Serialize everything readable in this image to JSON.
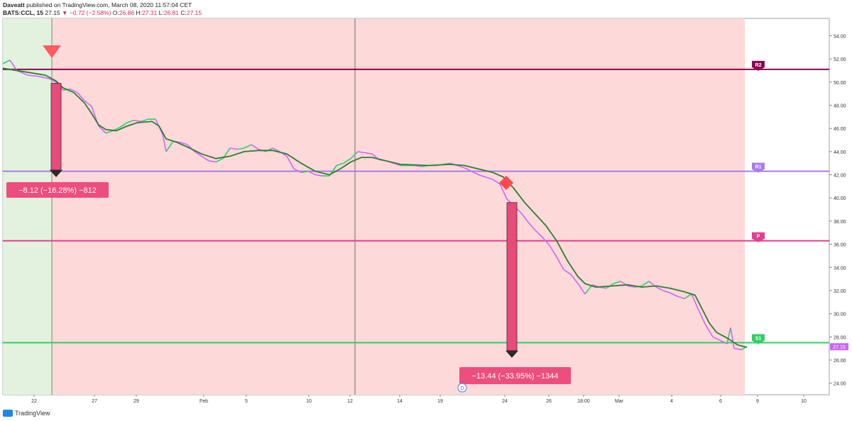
{
  "header": {
    "publisher": "Daveatt",
    "published_text": "published on TradingView.com, March 08, 2020 11:57:04 CET",
    "symbol": "BATS:CCL, 15",
    "last": "27.15",
    "change": "−0.72 (−2.58%)",
    "o_label": "O:",
    "o_val": "26.86",
    "h_label": "H:",
    "h_val": "27.31",
    "l_label": "L:",
    "l_val": "26.81",
    "c_label": "C:",
    "c_val": "27.15"
  },
  "footer": {
    "brand": "TradingView"
  },
  "colors": {
    "green_zone": "#e3f1df",
    "red_zone": "#fdd9d9",
    "price_up": "#2ecc71",
    "price_down": "#cc66ff",
    "ma": "#2e7d32",
    "r2": "#8b0a50",
    "r1": "#a97de8",
    "p": "#e43f8f",
    "s1": "#33cc66",
    "arrow": "#e84a7a",
    "box": "#ee4d7f"
  },
  "chart_data": {
    "type": "line",
    "ylim": [
      23,
      55.5
    ],
    "y_ticks": [
      "54.00",
      "52.00",
      "50.00",
      "48.00",
      "46.00",
      "44.00",
      "42.00",
      "40.00",
      "38.00",
      "36.00",
      "34.00",
      "32.00",
      "30.00",
      "28.00",
      "26.00",
      "24.00"
    ],
    "x_ticks": [
      "22",
      "27",
      "29",
      "Feb",
      "5",
      "10",
      "12",
      "14",
      "19",
      "24",
      "26",
      "18:00",
      "Mar",
      "4",
      "6",
      "9",
      "10"
    ],
    "last_price_label": "27.15",
    "levels": [
      {
        "label": "R2",
        "value": 51.1
      },
      {
        "label": "R1",
        "value": 42.3
      },
      {
        "label": "P",
        "value": 36.3
      },
      {
        "label": "S1",
        "value": 27.5
      }
    ],
    "trades": [
      {
        "label": "−8.12 (−16.28%) −812",
        "from": 49.9,
        "to": 41.8
      },
      {
        "label": "−13.44 (−33.95%) −1344",
        "from": 39.6,
        "to": 26.2
      }
    ],
    "price_series": [
      [
        0,
        51.6
      ],
      [
        10,
        51.9
      ],
      [
        20,
        51.0
      ],
      [
        35,
        50.6
      ],
      [
        50,
        50.5
      ],
      [
        65,
        50.3
      ],
      [
        75,
        50.0
      ],
      [
        85,
        49.3
      ],
      [
        95,
        49.4
      ],
      [
        105,
        49.1
      ],
      [
        115,
        48.4
      ],
      [
        125,
        47.9
      ],
      [
        135,
        46.2
      ],
      [
        145,
        45.6
      ],
      [
        155,
        45.8
      ],
      [
        165,
        46.1
      ],
      [
        175,
        46.5
      ],
      [
        185,
        46.7
      ],
      [
        195,
        46.6
      ],
      [
        205,
        46.8
      ],
      [
        215,
        46.8
      ],
      [
        225,
        45.5
      ],
      [
        230,
        44.0
      ],
      [
        240,
        44.9
      ],
      [
        250,
        44.8
      ],
      [
        260,
        44.6
      ],
      [
        270,
        44.0
      ],
      [
        280,
        43.6
      ],
      [
        290,
        43.2
      ],
      [
        300,
        43.1
      ],
      [
        310,
        43.4
      ],
      [
        320,
        44.3
      ],
      [
        330,
        44.2
      ],
      [
        340,
        44.3
      ],
      [
        350,
        44.6
      ],
      [
        360,
        44.2
      ],
      [
        370,
        44.0
      ],
      [
        380,
        44.3
      ],
      [
        390,
        44.0
      ],
      [
        400,
        43.6
      ],
      [
        410,
        42.5
      ],
      [
        420,
        42.2
      ],
      [
        430,
        42.3
      ],
      [
        440,
        42.0
      ],
      [
        450,
        41.9
      ],
      [
        460,
        41.9
      ],
      [
        470,
        42.8
      ],
      [
        480,
        43.0
      ],
      [
        490,
        43.4
      ],
      [
        500,
        44.0
      ],
      [
        510,
        43.9
      ],
      [
        520,
        43.8
      ],
      [
        530,
        43.3
      ],
      [
        540,
        43.2
      ],
      [
        550,
        43.0
      ],
      [
        560,
        42.8
      ],
      [
        570,
        42.8
      ],
      [
        580,
        42.8
      ],
      [
        590,
        42.7
      ],
      [
        600,
        42.8
      ],
      [
        610,
        42.8
      ],
      [
        620,
        42.9
      ],
      [
        630,
        43.0
      ],
      [
        640,
        42.8
      ],
      [
        650,
        42.6
      ],
      [
        660,
        42.3
      ],
      [
        670,
        42.0
      ],
      [
        680,
        41.8
      ],
      [
        690,
        41.6
      ],
      [
        700,
        41.2
      ],
      [
        710,
        39.9
      ],
      [
        720,
        39.3
      ],
      [
        730,
        38.7
      ],
      [
        740,
        37.9
      ],
      [
        750,
        37.2
      ],
      [
        760,
        36.6
      ],
      [
        770,
        35.9
      ],
      [
        780,
        34.9
      ],
      [
        790,
        33.8
      ],
      [
        800,
        33.4
      ],
      [
        810,
        32.6
      ],
      [
        820,
        31.7
      ],
      [
        830,
        32.5
      ],
      [
        840,
        32.3
      ],
      [
        850,
        32.2
      ],
      [
        860,
        32.6
      ],
      [
        870,
        32.8
      ],
      [
        880,
        32.4
      ],
      [
        890,
        32.3
      ],
      [
        900,
        32.4
      ],
      [
        910,
        32.8
      ],
      [
        920,
        32.3
      ],
      [
        930,
        32.0
      ],
      [
        940,
        31.8
      ],
      [
        950,
        31.5
      ],
      [
        960,
        31.3
      ],
      [
        970,
        31.7
      ],
      [
        980,
        30.3
      ],
      [
        990,
        29.0
      ],
      [
        1000,
        28.0
      ],
      [
        1010,
        27.7
      ],
      [
        1020,
        27.4
      ],
      [
        1025,
        28.8
      ],
      [
        1030,
        27.0
      ],
      [
        1040,
        26.9
      ],
      [
        1048,
        27.15
      ]
    ],
    "ma_series": [
      [
        0,
        51.2
      ],
      [
        30,
        50.9
      ],
      [
        60,
        50.6
      ],
      [
        75,
        50.1
      ],
      [
        85,
        49.5
      ],
      [
        100,
        49.1
      ],
      [
        115,
        48.2
      ],
      [
        125,
        47.3
      ],
      [
        135,
        46.3
      ],
      [
        145,
        45.9
      ],
      [
        160,
        45.8
      ],
      [
        175,
        46.2
      ],
      [
        190,
        46.5
      ],
      [
        210,
        46.6
      ],
      [
        220,
        46.2
      ],
      [
        230,
        45.1
      ],
      [
        245,
        44.8
      ],
      [
        260,
        44.4
      ],
      [
        280,
        43.8
      ],
      [
        300,
        43.4
      ],
      [
        320,
        43.6
      ],
      [
        340,
        44.0
      ],
      [
        360,
        44.1
      ],
      [
        380,
        44.1
      ],
      [
        400,
        43.8
      ],
      [
        420,
        43.0
      ],
      [
        440,
        42.3
      ],
      [
        460,
        42.0
      ],
      [
        475,
        42.5
      ],
      [
        490,
        43.1
      ],
      [
        505,
        43.5
      ],
      [
        520,
        43.5
      ],
      [
        540,
        43.2
      ],
      [
        560,
        42.9
      ],
      [
        600,
        42.8
      ],
      [
        630,
        42.9
      ],
      [
        650,
        42.8
      ],
      [
        670,
        42.5
      ],
      [
        690,
        42.2
      ],
      [
        705,
        41.8
      ],
      [
        720,
        40.8
      ],
      [
        735,
        39.6
      ],
      [
        750,
        38.6
      ],
      [
        765,
        37.6
      ],
      [
        780,
        36.3
      ],
      [
        795,
        34.6
      ],
      [
        810,
        33.2
      ],
      [
        820,
        32.6
      ],
      [
        835,
        32.3
      ],
      [
        860,
        32.4
      ],
      [
        880,
        32.5
      ],
      [
        900,
        32.3
      ],
      [
        920,
        32.4
      ],
      [
        940,
        32.2
      ],
      [
        960,
        31.9
      ],
      [
        975,
        31.6
      ],
      [
        985,
        30.4
      ],
      [
        995,
        29.2
      ],
      [
        1005,
        28.4
      ],
      [
        1020,
        27.9
      ],
      [
        1035,
        27.3
      ],
      [
        1048,
        27.1
      ]
    ]
  }
}
